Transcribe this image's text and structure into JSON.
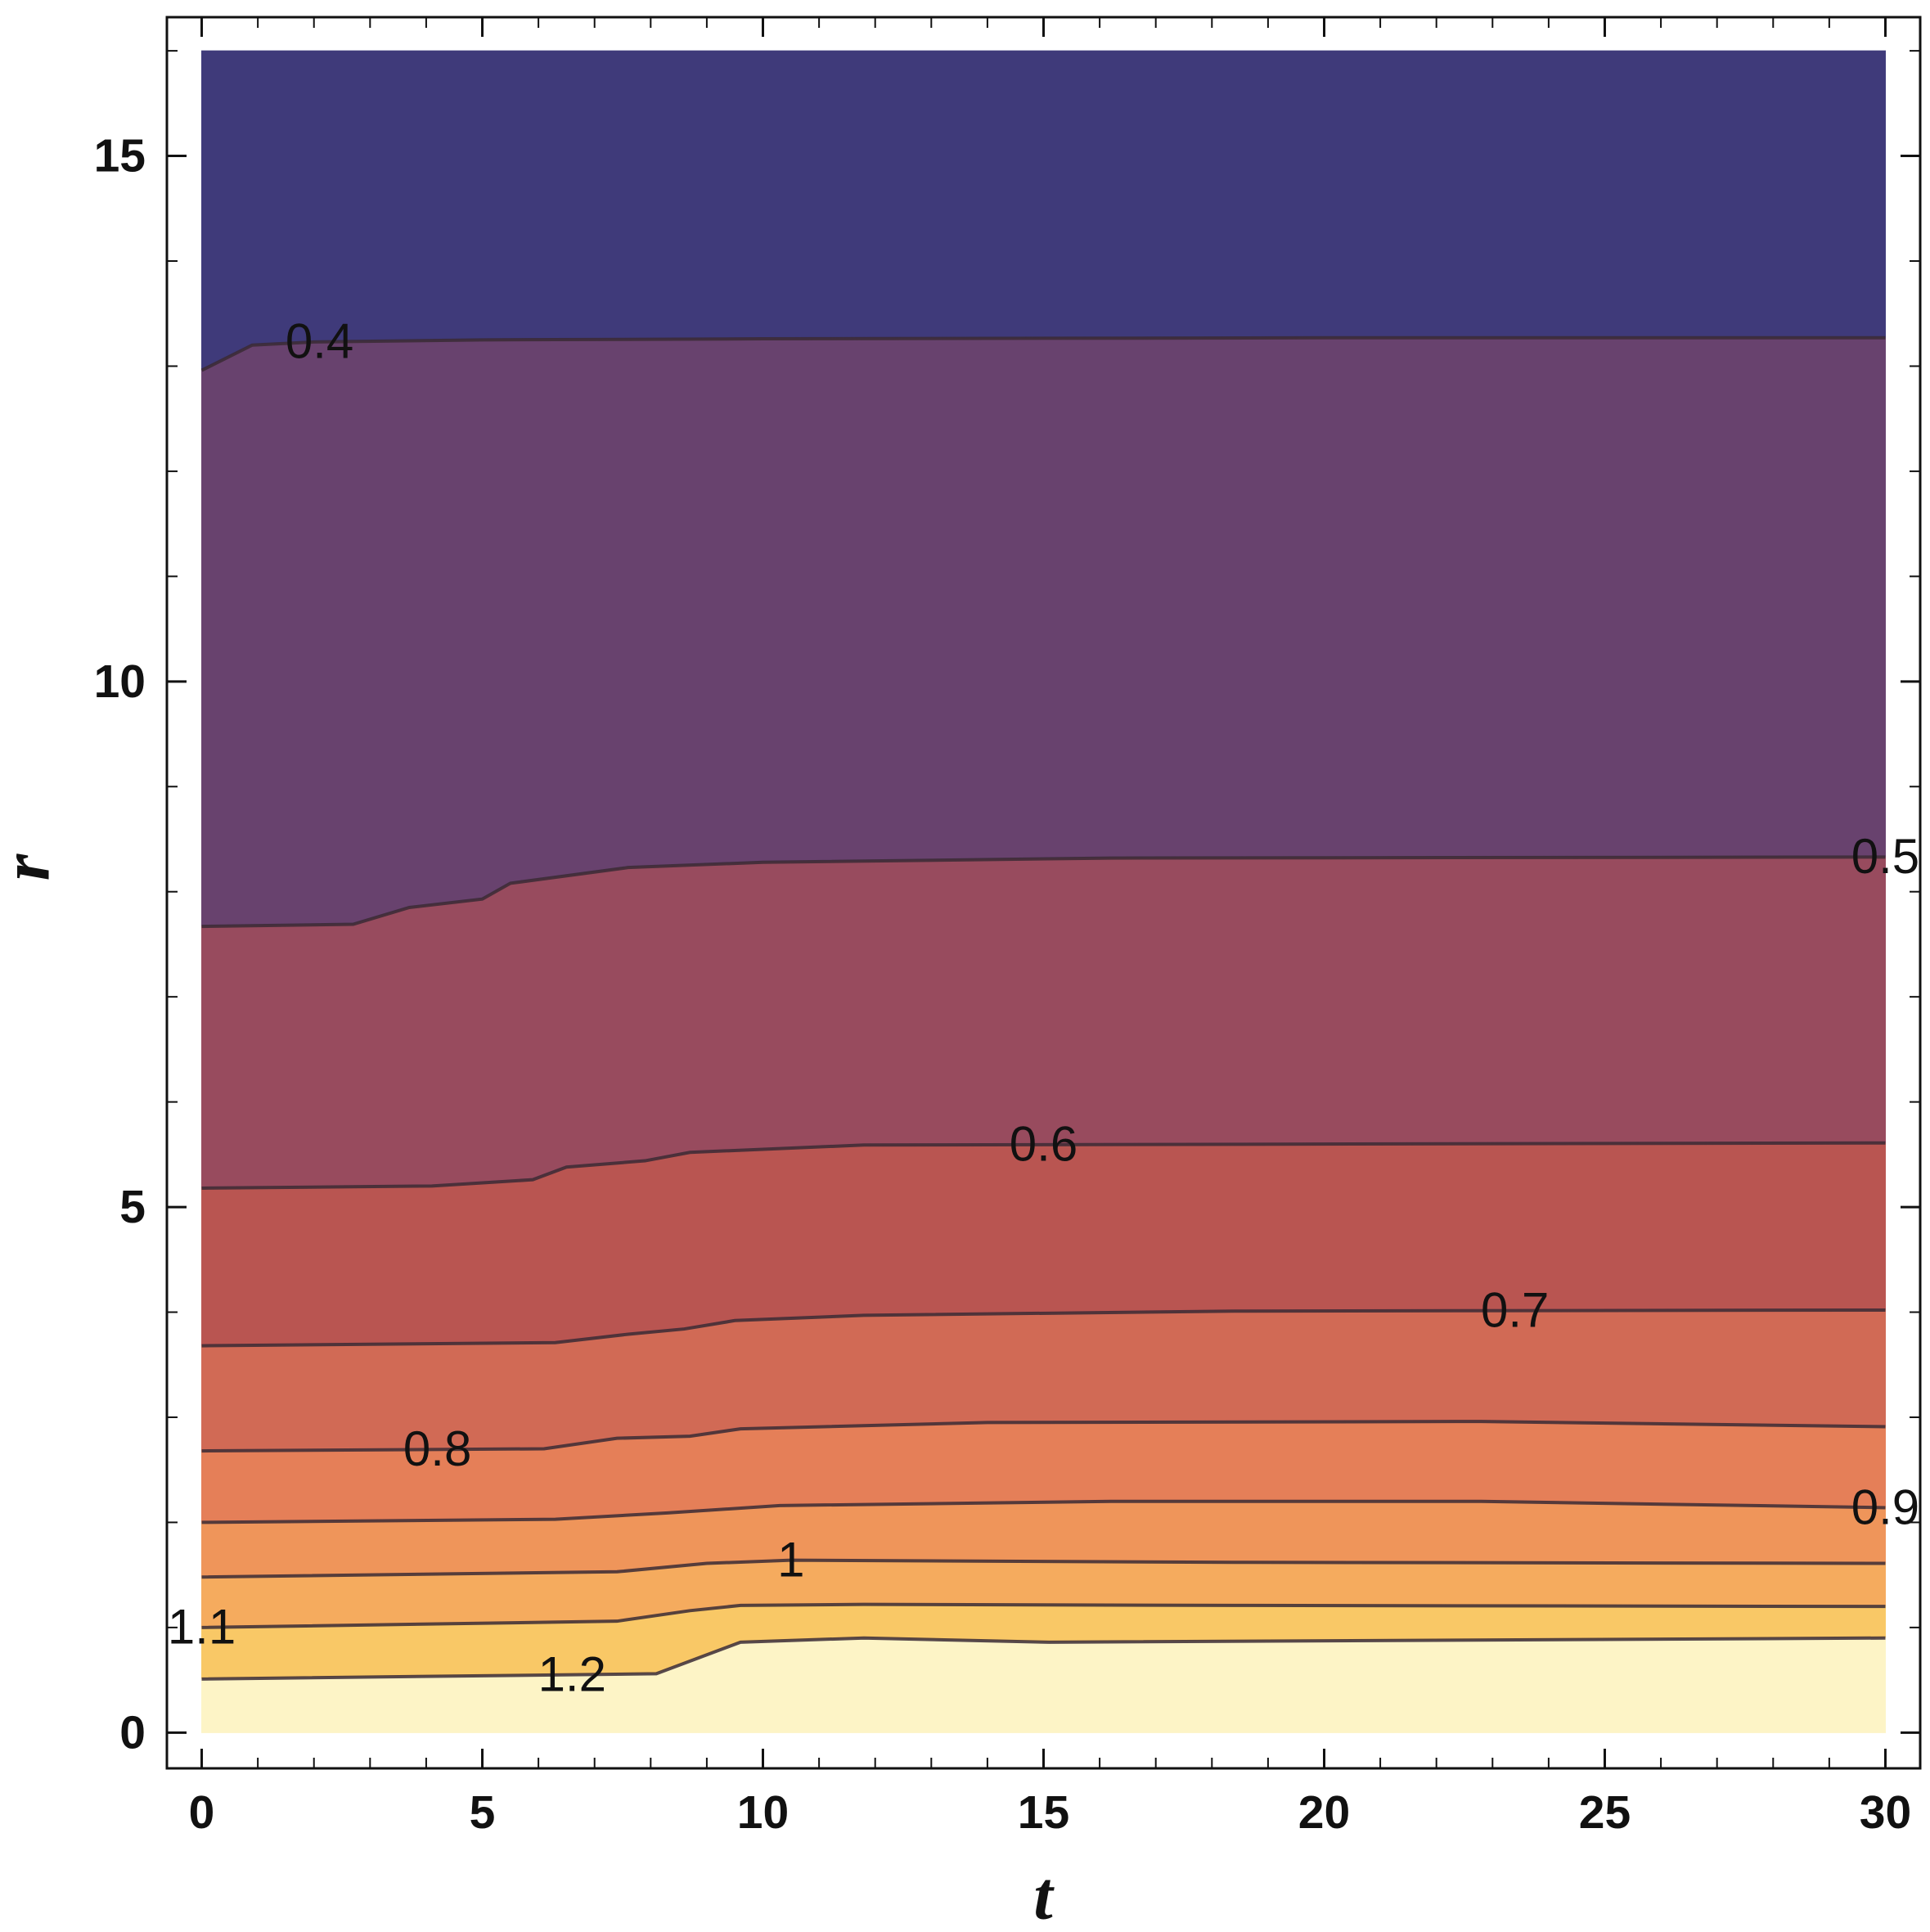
{
  "chart_data": {
    "type": "contour",
    "xlabel": "t",
    "ylabel": "r",
    "xlim": [
      -0.62,
      30.62
    ],
    "ylim": [
      -0.34,
      16.32
    ],
    "xdomain": [
      0,
      30
    ],
    "ydomain": [
      0,
      16
    ],
    "xticks": [
      0,
      5,
      10,
      15,
      20,
      25,
      30
    ],
    "yticks": [
      0,
      5,
      10,
      15
    ],
    "xminorticks": [
      1,
      2,
      3,
      4,
      6,
      7,
      8,
      9,
      11,
      12,
      13,
      14,
      16,
      17,
      18,
      19,
      21,
      22,
      23,
      24,
      26,
      27,
      28,
      29
    ],
    "yminorticks": [
      1,
      2,
      3,
      4,
      6,
      7,
      8,
      9,
      11,
      12,
      13,
      14,
      16
    ],
    "line_color": "#3a2a35",
    "fill_colors": [
      "#3f3a7a",
      "#68426e",
      "#984b5e",
      "#b95551",
      "#d16a55",
      "#e57f58",
      "#ef955a",
      "#f5ab5e",
      "#f9c866",
      "#fdf4c6"
    ],
    "contours": [
      {
        "level": 0.4,
        "x": [
          0,
          0.9,
          2,
          5,
          10,
          20,
          30
        ],
        "y": [
          12.96,
          13.2,
          13.23,
          13.25,
          13.26,
          13.27,
          13.27
        ]
      },
      {
        "level": 0.5,
        "x": [
          0,
          2.7,
          3.7,
          5,
          5.5,
          7.6,
          10,
          16.2,
          30
        ],
        "y": [
          7.67,
          7.69,
          7.85,
          7.93,
          8.08,
          8.23,
          8.28,
          8.32,
          8.33
        ]
      },
      {
        "level": 0.6,
        "x": [
          0,
          4.1,
          5.9,
          6.5,
          7.9,
          8.7,
          11.8,
          30
        ],
        "y": [
          5.18,
          5.2,
          5.26,
          5.38,
          5.44,
          5.52,
          5.59,
          5.61
        ]
      },
      {
        "level": 0.7,
        "x": [
          0,
          6.3,
          7.6,
          8.6,
          9.5,
          11.8,
          18.4,
          30
        ],
        "y": [
          3.68,
          3.71,
          3.79,
          3.84,
          3.92,
          3.97,
          4.01,
          4.02
        ]
      },
      {
        "level": 0.8,
        "x": [
          0,
          6.1,
          7.4,
          8.7,
          9.6,
          14,
          22.8,
          30
        ],
        "y": [
          2.68,
          2.7,
          2.8,
          2.82,
          2.89,
          2.95,
          2.96,
          2.91
        ]
      },
      {
        "level": 0.9,
        "x": [
          0,
          6.3,
          8.3,
          10.3,
          16.2,
          22.8,
          30
        ],
        "y": [
          2.0,
          2.03,
          2.09,
          2.16,
          2.2,
          2.2,
          2.14
        ]
      },
      {
        "level": 1,
        "x": [
          0,
          7.4,
          9,
          10.5,
          18.4,
          30
        ],
        "y": [
          1.48,
          1.53,
          1.61,
          1.64,
          1.62,
          1.61
        ]
      },
      {
        "level": 1.1,
        "x": [
          0,
          7.4,
          8.7,
          9.6,
          11.8,
          18.4,
          30
        ],
        "y": [
          1.0,
          1.06,
          1.16,
          1.21,
          1.22,
          1.21,
          1.2
        ]
      },
      {
        "level": 1.2,
        "x": [
          0,
          8.1,
          9,
          9.6,
          11.8,
          15.1,
          30
        ],
        "y": [
          0.51,
          0.56,
          0.74,
          0.86,
          0.9,
          0.86,
          0.9
        ]
      }
    ]
  }
}
